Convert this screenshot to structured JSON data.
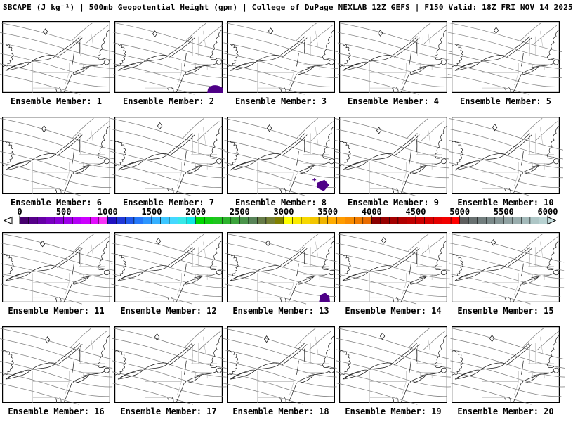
{
  "title": "SBCAPE (J kg⁻¹) | 500mb Geopotential Height (gpm) | College of DuPage NEXLAB 12Z GEFS | F150 Valid: 18Z FRI NOV 14 2025",
  "field": "SBCAPE",
  "field_units": "J kg⁻¹",
  "overlay": "500mb Geopotential Height (gpm)",
  "model": "12Z GEFS",
  "forecast_hour": "F150",
  "valid_time": "18Z FRI NOV 14 2025",
  "source": "College of DuPage NEXLAB",
  "panels": [
    {
      "member": 1,
      "label": "Ensemble Member: 1",
      "cape_blob": false
    },
    {
      "member": 2,
      "label": "Ensemble Member: 2",
      "cape_blob": true
    },
    {
      "member": 3,
      "label": "Ensemble Member: 3",
      "cape_blob": false
    },
    {
      "member": 4,
      "label": "Ensemble Member: 4",
      "cape_blob": false
    },
    {
      "member": 5,
      "label": "Ensemble Member: 5",
      "cape_blob": false
    },
    {
      "member": 6,
      "label": "Ensemble Member: 6",
      "cape_blob": false
    },
    {
      "member": 7,
      "label": "Ensemble Member: 7",
      "cape_blob": false
    },
    {
      "member": 8,
      "label": "Ensemble Member: 8",
      "cape_blob": true
    },
    {
      "member": 9,
      "label": "Ensemble Member: 9",
      "cape_blob": false
    },
    {
      "member": 10,
      "label": "Ensemble Member: 10",
      "cape_blob": false
    },
    {
      "member": 11,
      "label": "Ensemble Member: 11",
      "cape_blob": false
    },
    {
      "member": 12,
      "label": "Ensemble Member: 12",
      "cape_blob": false
    },
    {
      "member": 13,
      "label": "Ensemble Member: 13",
      "cape_blob": true
    },
    {
      "member": 14,
      "label": "Ensemble Member: 14",
      "cape_blob": false
    },
    {
      "member": 15,
      "label": "Ensemble Member: 15",
      "cape_blob": false
    },
    {
      "member": 16,
      "label": "Ensemble Member: 16",
      "cape_blob": false
    },
    {
      "member": 17,
      "label": "Ensemble Member: 17",
      "cape_blob": false
    },
    {
      "member": 18,
      "label": "Ensemble Member: 18",
      "cape_blob": false
    },
    {
      "member": 19,
      "label": "Ensemble Member: 19",
      "cape_blob": false
    },
    {
      "member": 20,
      "label": "Ensemble Member: 20",
      "cape_blob": false
    }
  ],
  "colorbar": {
    "min": 0,
    "max": 6000,
    "tick_labels": [
      "0",
      "500",
      "1000",
      "1500",
      "2000",
      "2500",
      "3000",
      "3500",
      "4000",
      "4500",
      "5000",
      "5500",
      "6000"
    ],
    "below_min_color": "#ffffff",
    "above_max_color": "#c2dcdc",
    "segment_colors": [
      "#46006e",
      "#56008a",
      "#6600a6",
      "#7800c0",
      "#8a00d8",
      "#9e00ea",
      "#b400f6",
      "#cc00fe",
      "#e20cfe",
      "#f633f6",
      "#2010c0",
      "#2038d8",
      "#2058ec",
      "#2478fa",
      "#2c96ff",
      "#34b0ff",
      "#3cc6ff",
      "#44d8ff",
      "#38e8e8",
      "#10e6e6",
      "#00d800",
      "#10ce10",
      "#20c420",
      "#2eb42e",
      "#3ca43c",
      "#4a944a",
      "#588458",
      "#667c48",
      "#748036",
      "#808000",
      "#ffff00",
      "#fbeb00",
      "#f7d800",
      "#f3c600",
      "#efb400",
      "#ffac00",
      "#ff9c00",
      "#f98c00",
      "#f17c00",
      "#e96c00",
      "#8a0000",
      "#970000",
      "#a40000",
      "#b10000",
      "#be0000",
      "#cb0000",
      "#d80000",
      "#e50000",
      "#f20000",
      "#ff0000",
      "#5e5e5e",
      "#687070",
      "#727e7e",
      "#7c8a8a",
      "#869696",
      "#90a2a2",
      "#9aaeae",
      "#a4baba",
      "#aec6c6",
      "#b8d2d2"
    ]
  },
  "colors": {
    "coast": "#1c1c1c",
    "state_border": "#ababab",
    "height_contour": "#7d7d7d",
    "cape_fill": "#4e0087",
    "panel_border": "#000000",
    "background": "#ffffff"
  }
}
